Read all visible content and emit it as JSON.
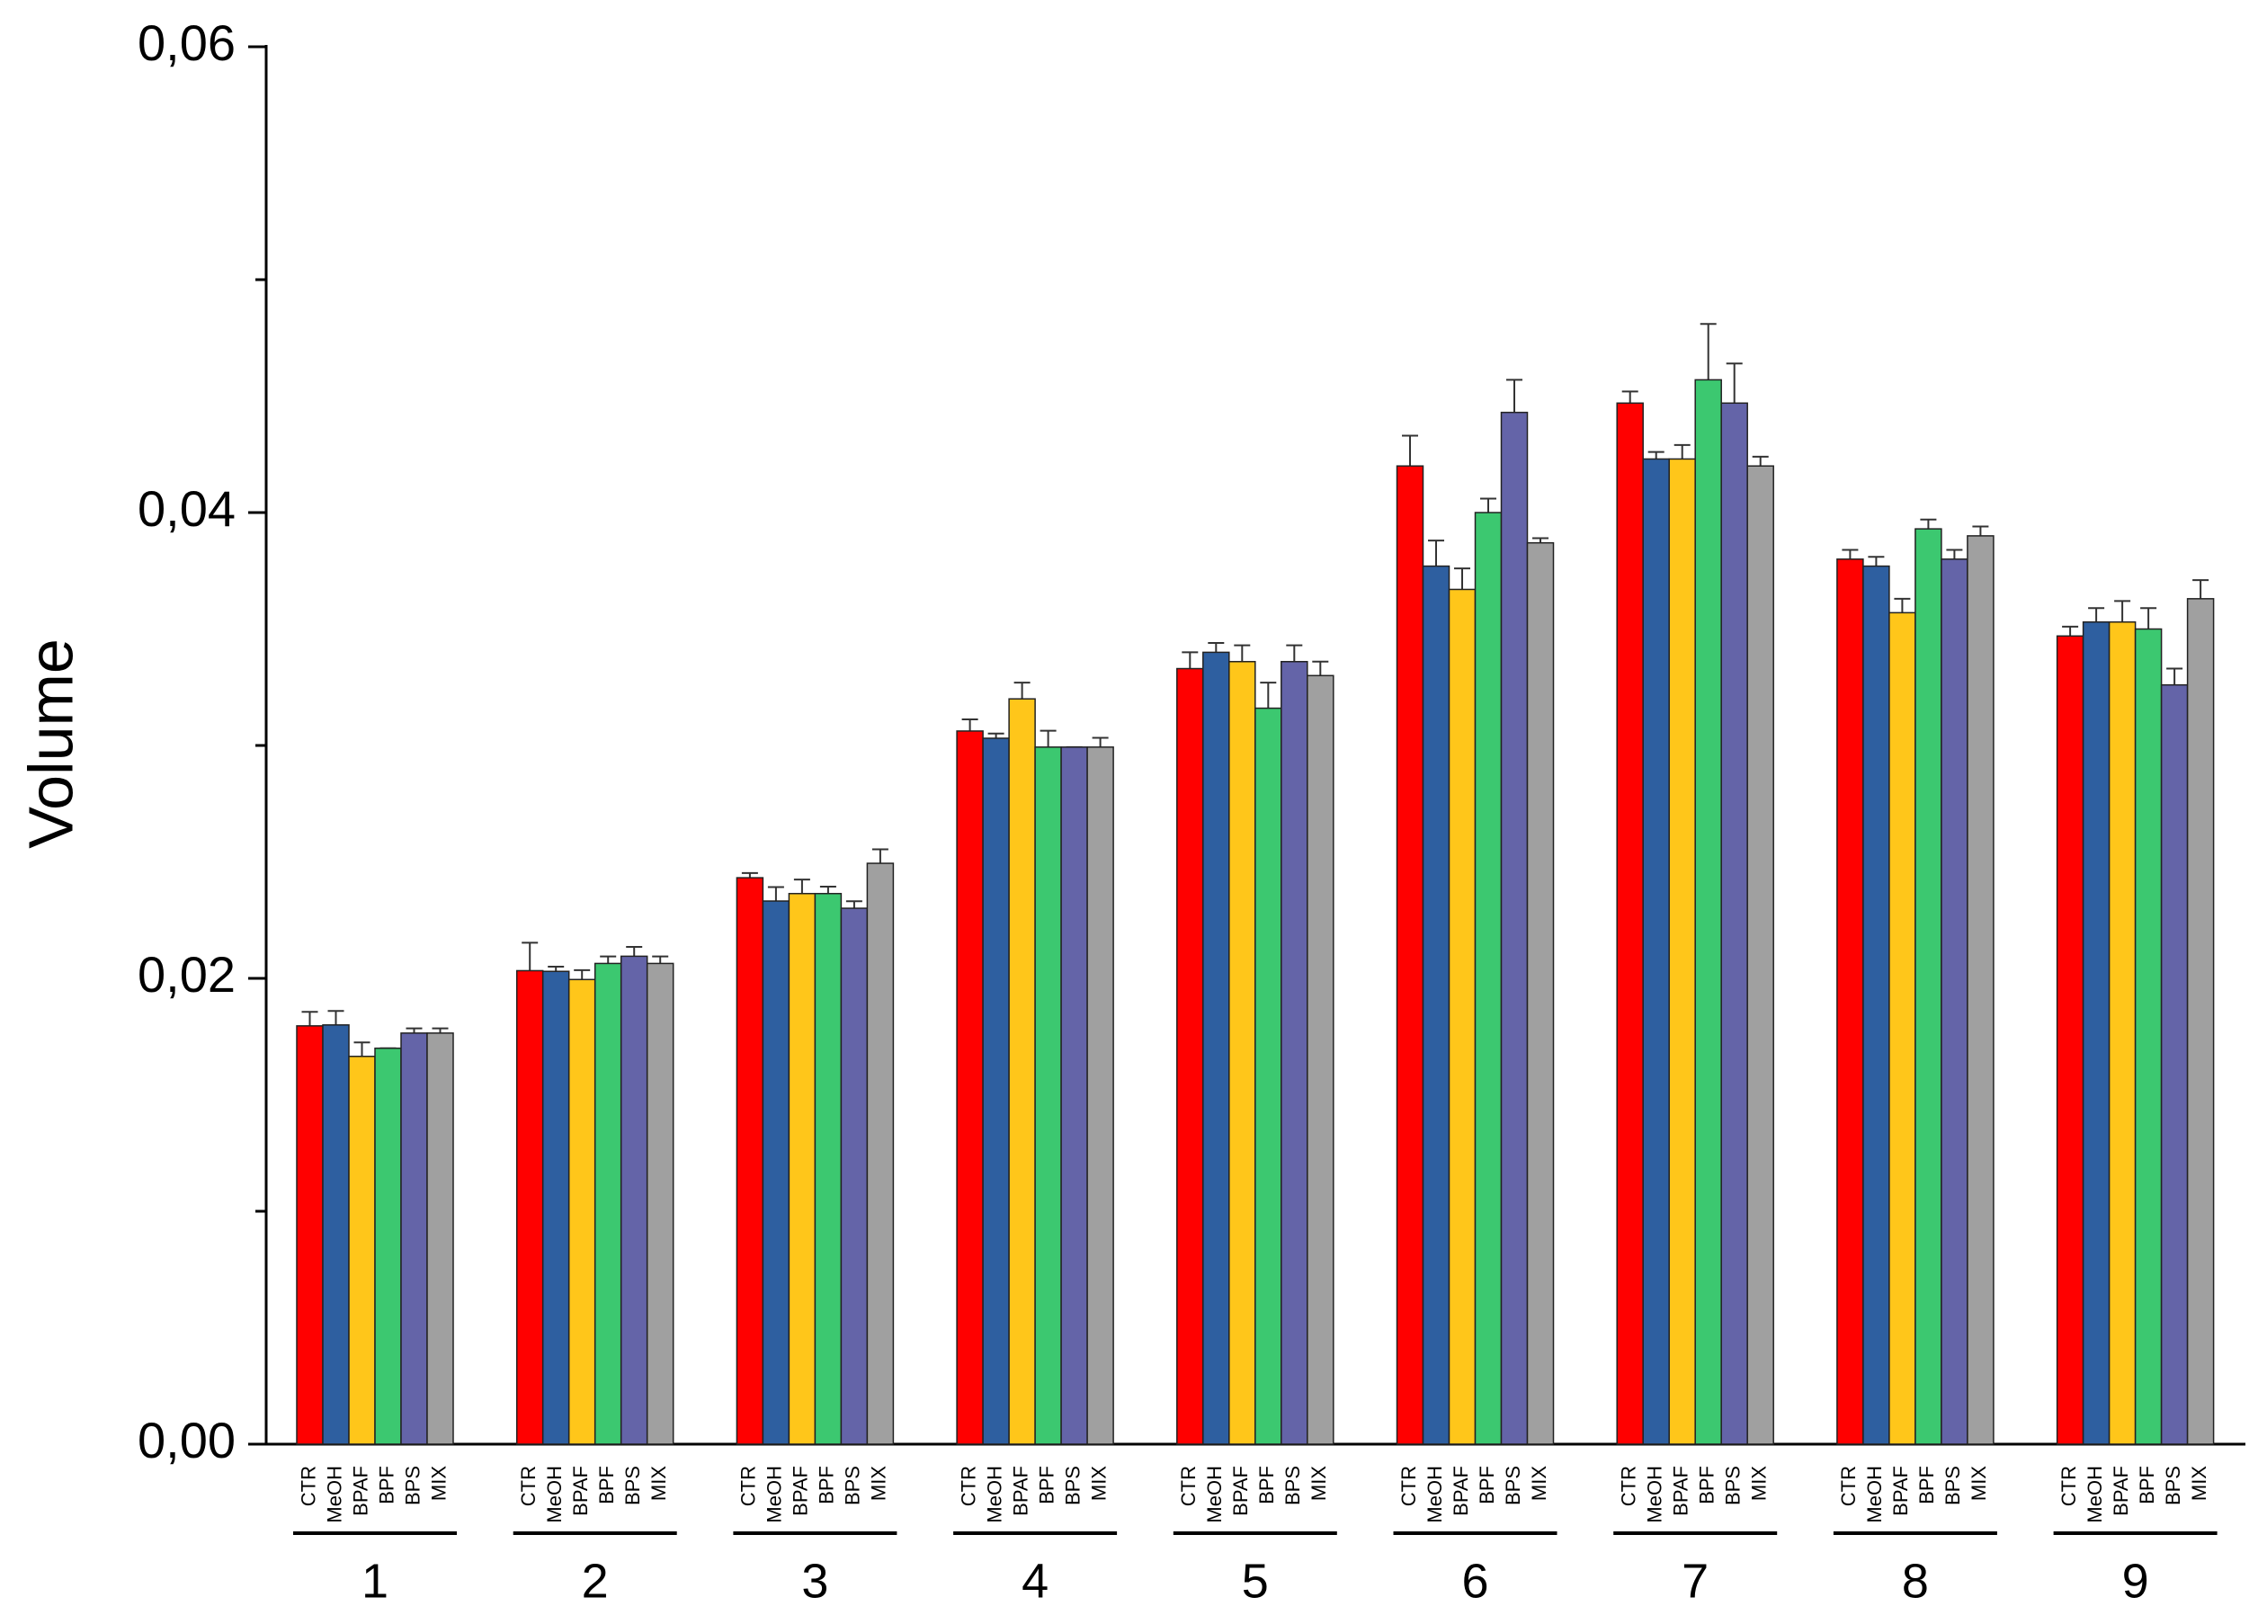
{
  "chart_data": {
    "type": "bar",
    "ylabel": "Volume",
    "categories": [
      "1",
      "2",
      "3",
      "4",
      "5",
      "6",
      "7",
      "8",
      "9"
    ],
    "series": [
      {
        "name": "CTR",
        "color": "#ff0000",
        "values": [
          0.01796,
          0.02033,
          0.02432,
          0.03062,
          0.0333,
          0.042,
          0.0447,
          0.038,
          0.0347
        ],
        "errors": [
          0.0006,
          0.0012,
          0.0002,
          0.0005,
          0.0007,
          0.0013,
          0.0005,
          0.0004,
          0.0004
        ]
      },
      {
        "name": "MeOH",
        "color": "#2e5fa0",
        "values": [
          0.018,
          0.0203,
          0.02332,
          0.03031,
          0.034,
          0.0377,
          0.0423,
          0.0377,
          0.0353
        ],
        "errors": [
          0.0006,
          0.0002,
          0.0006,
          0.0002,
          0.0004,
          0.0011,
          0.0003,
          0.0004,
          0.0006
        ]
      },
      {
        "name": "BPAF",
        "color": "#ffc61a",
        "values": [
          0.01665,
          0.01995,
          0.02364,
          0.032,
          0.0336,
          0.0367,
          0.0423,
          0.0357,
          0.0353
        ],
        "errors": [
          0.0006,
          0.0004,
          0.0006,
          0.0007,
          0.0007,
          0.0009,
          0.0006,
          0.0006,
          0.0009
        ]
      },
      {
        "name": "BPF",
        "color": "#3cc870",
        "values": [
          0.017,
          0.02064,
          0.02364,
          0.02993,
          0.0316,
          0.04,
          0.0457,
          0.0393,
          0.035
        ],
        "errors": [
          0,
          0.0003,
          0.0003,
          0.0007,
          0.0011,
          0.0006,
          0.0024,
          0.0004,
          0.0009
        ]
      },
      {
        "name": "BPS",
        "color": "#6464a8",
        "values": [
          0.01765,
          0.02095,
          0.02301,
          0.02993,
          0.0336,
          0.0443,
          0.0447,
          0.038,
          0.0326
        ],
        "errors": [
          0.0002,
          0.0004,
          0.0003,
          0,
          0.0007,
          0.0014,
          0.0017,
          0.0004,
          0.0007
        ]
      },
      {
        "name": "MIX",
        "color": "#a0a0a0",
        "values": [
          0.01765,
          0.02064,
          0.02494,
          0.02993,
          0.033,
          0.0387,
          0.042,
          0.039,
          0.0363
        ],
        "errors": [
          0.0002,
          0.0003,
          0.0006,
          0.0004,
          0.0006,
          0.0002,
          0.0004,
          0.0004,
          0.0008
        ]
      }
    ],
    "ylim": [
      0,
      0.06
    ],
    "yticks": [
      {
        "value": 0,
        "label": "0,00"
      },
      {
        "value": 0.02,
        "label": "0,02"
      },
      {
        "value": 0.04,
        "label": "0,04"
      },
      {
        "value": 0.06,
        "label": "0,06"
      }
    ],
    "yminor_ticks": [
      0.01,
      0.03,
      0.05
    ],
    "grid": false
  }
}
